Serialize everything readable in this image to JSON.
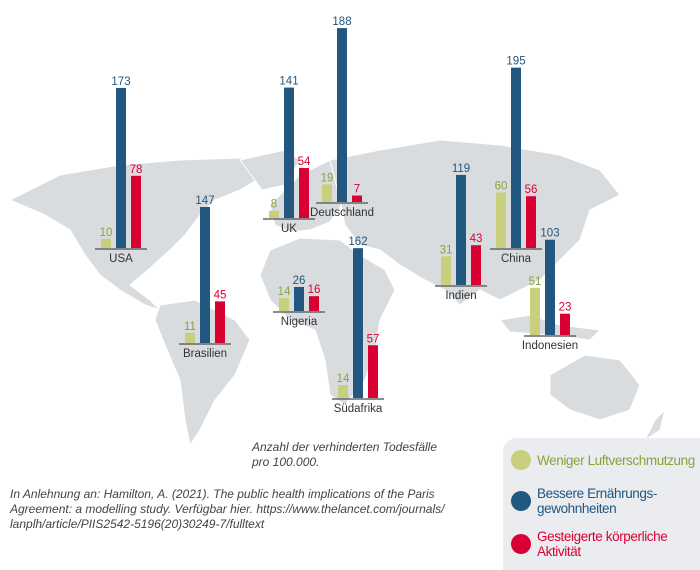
{
  "colors": {
    "air": "#c8cf7d",
    "air_text": "#8aa23a",
    "diet": "#22577f",
    "activity": "#d90033",
    "map": "#d9dcdf"
  },
  "chart_data": {
    "type": "bar",
    "title": "",
    "ylabel": "Anzahl der verhinderten Todesfälle pro 100.000.",
    "series_names": [
      "Weniger Luftverschmutzung",
      "Bessere Ernährungsgewohnheiten",
      "Gesteigerte körperliche Aktivität"
    ],
    "categories": [
      "USA",
      "Brasilien",
      "UK",
      "Deutschland",
      "Nigeria",
      "Südafrika",
      "Indien",
      "China",
      "Indonesien"
    ],
    "series": [
      {
        "name": "Weniger Luftverschmutzung",
        "values": [
          10,
          11,
          8,
          19,
          14,
          14,
          31,
          60,
          51
        ]
      },
      {
        "name": "Bessere Ernährungsgewohnheiten",
        "values": [
          173,
          147,
          141,
          188,
          26,
          162,
          119,
          195,
          103
        ]
      },
      {
        "name": "Gesteigerte körperliche Aktivität",
        "values": [
          78,
          45,
          54,
          7,
          16,
          57,
          43,
          56,
          23
        ]
      }
    ]
  },
  "note": {
    "line1": "Anzahl der verhinderten Todesfälle",
    "line2": "pro 100.000."
  },
  "citation": {
    "line1": "In Anlehnung an: Hamilton, A. (2021). The public health implications of the Paris",
    "line2": "Agreement: a modelling study. Verfügbar hier. https://www.thelancet.com/journals/",
    "line3": "lanplh/article/PIIS2542-5196(20)30249-7/fulltext"
  },
  "legend": {
    "air": "Weniger Luftverschmutzung",
    "diet_1": "Bessere Ernährungs-",
    "diet_2": "gewohnheiten",
    "activity_1": "Gesteigerte körperliche",
    "activity_2": "Aktivität"
  }
}
